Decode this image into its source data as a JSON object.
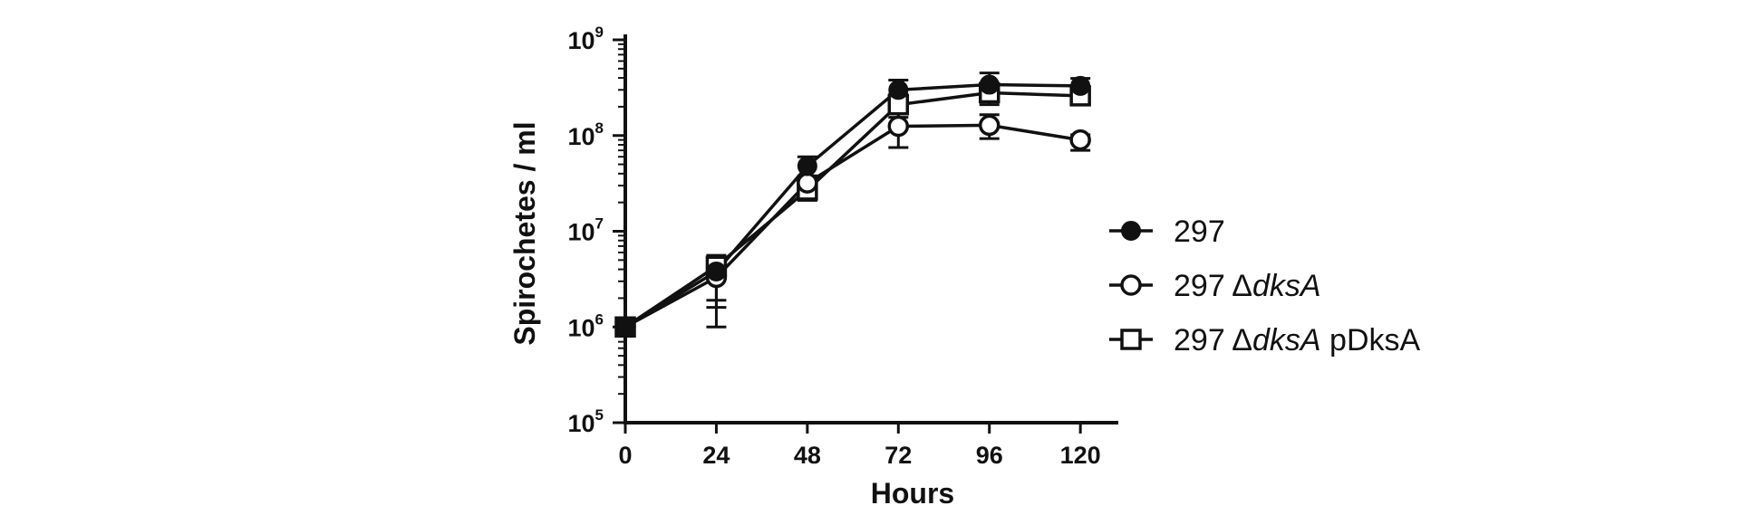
{
  "chart_data": {
    "type": "line",
    "title": "",
    "xlabel": "Hours",
    "ylabel": "Spirochetes / ml",
    "x": [
      0,
      24,
      48,
      72,
      96,
      120
    ],
    "xlim": [
      0,
      130
    ],
    "ylim": [
      100000,
      1000000000
    ],
    "yscale": "log",
    "x_ticks": [
      "0",
      "24",
      "48",
      "72",
      "96",
      "120"
    ],
    "y_ticks": [
      {
        "base": "10",
        "exp": "5",
        "value": 100000
      },
      {
        "base": "10",
        "exp": "6",
        "value": 1000000
      },
      {
        "base": "10",
        "exp": "7",
        "value": 10000000
      },
      {
        "base": "10",
        "exp": "8",
        "value": 100000000
      },
      {
        "base": "10",
        "exp": "9",
        "value": 1000000000
      }
    ],
    "legend_position": "right",
    "series": [
      {
        "name": "297",
        "name_parts": [
          "297"
        ],
        "marker": "filled-circle",
        "values": [
          1000000,
          3800000,
          48000000,
          300000000,
          340000000,
          330000000
        ],
        "err_low": [
          0,
          1600000,
          38000000,
          250000000,
          260000000,
          285000000
        ],
        "err_high": [
          0,
          5000000,
          60000000,
          380000000,
          450000000,
          395000000
        ]
      },
      {
        "name": "297 ΔdksA",
        "name_parts": [
          "297 Δ",
          "dksA"
        ],
        "marker": "open-circle",
        "values": [
          1000000,
          3300000,
          32000000,
          125000000,
          128000000,
          90000000
        ],
        "err_low": [
          0,
          1000000,
          27000000,
          75000000,
          93000000,
          70000000
        ],
        "err_high": [
          0,
          4500000,
          37000000,
          175000000,
          165000000,
          102000000
        ]
      },
      {
        "name": "297 ΔdksA pDksA",
        "name_parts": [
          "297 Δ",
          "dksA",
          " pDksA"
        ],
        "marker": "open-square",
        "values": [
          1000000,
          4300000,
          27000000,
          210000000,
          280000000,
          260000000
        ],
        "err_low": [
          0,
          1900000,
          21000000,
          155000000,
          210000000,
          235000000
        ],
        "err_high": [
          0,
          5600000,
          32000000,
          270000000,
          320000000,
          285000000
        ]
      }
    ]
  }
}
